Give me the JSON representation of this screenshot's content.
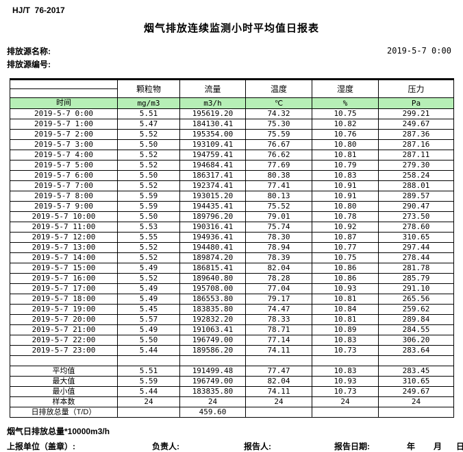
{
  "header": {
    "standard_no": "HJ/T  76-2017",
    "title": "烟气排放连续监测小时平均值日报表",
    "source_name_label": "排放源名称:",
    "source_code_label": "排放源编号:",
    "datetime": "2019-5-7 0:00"
  },
  "table": {
    "time_header": "时间",
    "columns": [
      {
        "name": "颗粒物",
        "unit": "mg/m3"
      },
      {
        "name": "流量",
        "unit": "m3/h"
      },
      {
        "name": "温度",
        "unit": "℃"
      },
      {
        "name": "湿度",
        "unit": "%"
      },
      {
        "name": "压力",
        "unit": "Pa"
      }
    ],
    "rows": [
      {
        "time": "2019-5-7 0:00",
        "values": [
          "5.51",
          "195619.20",
          "74.32",
          "10.75",
          "299.21"
        ]
      },
      {
        "time": "2019-5-7 1:00",
        "values": [
          "5.47",
          "184130.41",
          "75.30",
          "10.82",
          "249.67"
        ]
      },
      {
        "time": "2019-5-7 2:00",
        "values": [
          "5.52",
          "195354.00",
          "75.59",
          "10.76",
          "287.36"
        ]
      },
      {
        "time": "2019-5-7 3:00",
        "values": [
          "5.50",
          "193109.41",
          "76.67",
          "10.80",
          "287.16"
        ]
      },
      {
        "time": "2019-5-7 4:00",
        "values": [
          "5.52",
          "194759.41",
          "76.62",
          "10.81",
          "287.11"
        ]
      },
      {
        "time": "2019-5-7 5:00",
        "values": [
          "5.52",
          "194684.41",
          "77.69",
          "10.79",
          "279.30"
        ]
      },
      {
        "time": "2019-5-7 6:00",
        "values": [
          "5.50",
          "186317.41",
          "80.38",
          "10.83",
          "258.24"
        ]
      },
      {
        "time": "2019-5-7 7:00",
        "values": [
          "5.52",
          "192374.41",
          "77.41",
          "10.91",
          "288.01"
        ]
      },
      {
        "time": "2019-5-7 8:00",
        "values": [
          "5.59",
          "193015.20",
          "80.13",
          "10.91",
          "289.57"
        ]
      },
      {
        "time": "2019-5-7 9:00",
        "values": [
          "5.59",
          "194435.41",
          "75.52",
          "10.80",
          "290.47"
        ]
      },
      {
        "time": "2019-5-7 10:00",
        "values": [
          "5.50",
          "189796.20",
          "79.01",
          "10.78",
          "273.50"
        ]
      },
      {
        "time": "2019-5-7 11:00",
        "values": [
          "5.53",
          "190316.41",
          "75.74",
          "10.92",
          "278.60"
        ]
      },
      {
        "time": "2019-5-7 12:00",
        "values": [
          "5.55",
          "194936.41",
          "78.30",
          "10.87",
          "310.65"
        ]
      },
      {
        "time": "2019-5-7 13:00",
        "values": [
          "5.52",
          "194480.41",
          "78.94",
          "10.77",
          "297.44"
        ]
      },
      {
        "time": "2019-5-7 14:00",
        "values": [
          "5.52",
          "189874.20",
          "78.39",
          "10.75",
          "278.44"
        ]
      },
      {
        "time": "2019-5-7 15:00",
        "values": [
          "5.49",
          "186815.41",
          "82.04",
          "10.86",
          "281.78"
        ]
      },
      {
        "time": "2019-5-7 16:00",
        "values": [
          "5.52",
          "189640.80",
          "78.28",
          "10.86",
          "285.79"
        ]
      },
      {
        "time": "2019-5-7 17:00",
        "values": [
          "5.49",
          "195708.00",
          "77.04",
          "10.93",
          "291.10"
        ]
      },
      {
        "time": "2019-5-7 18:00",
        "values": [
          "5.49",
          "186553.80",
          "79.17",
          "10.81",
          "265.56"
        ]
      },
      {
        "time": "2019-5-7 19:00",
        "values": [
          "5.45",
          "183835.80",
          "74.47",
          "10.84",
          "259.62"
        ]
      },
      {
        "time": "2019-5-7 20:00",
        "values": [
          "5.57",
          "192832.20",
          "78.33",
          "10.81",
          "289.84"
        ]
      },
      {
        "time": "2019-5-7 21:00",
        "values": [
          "5.49",
          "191063.41",
          "78.71",
          "10.89",
          "284.55"
        ]
      },
      {
        "time": "2019-5-7 22:00",
        "values": [
          "5.50",
          "196749.00",
          "77.14",
          "10.83",
          "306.20"
        ]
      },
      {
        "time": "2019-5-7 23:00",
        "values": [
          "5.44",
          "189586.20",
          "74.11",
          "10.73",
          "283.64"
        ]
      }
    ],
    "summary": [
      {
        "label": "平均值",
        "values": [
          "5.51",
          "191499.48",
          "77.47",
          "10.83",
          "283.45"
        ]
      },
      {
        "label": "最大值",
        "values": [
          "5.59",
          "196749.00",
          "82.04",
          "10.93",
          "310.65"
        ]
      },
      {
        "label": "最小值",
        "values": [
          "5.44",
          "183835.80",
          "74.11",
          "10.73",
          "249.67"
        ]
      },
      {
        "label": "样本数",
        "values": [
          "24",
          "24",
          "24",
          "24",
          "24"
        ]
      },
      {
        "label": "日排放总量（T/D）",
        "values": [
          "",
          "459.60",
          "",
          "",
          ""
        ]
      }
    ]
  },
  "footer": {
    "note": "烟气日排放总量*10000m3/h",
    "report_unit_label": "上报单位（盖章）:",
    "responsible_label": "负责人:",
    "reporter_label": "报告人:",
    "report_date_label": "报告日期:",
    "year_label": "年",
    "month_label": "月",
    "day_label": "日"
  },
  "colors": {
    "header_row_green": "#b6efb6",
    "border": "#000000",
    "background": "#ffffff"
  }
}
